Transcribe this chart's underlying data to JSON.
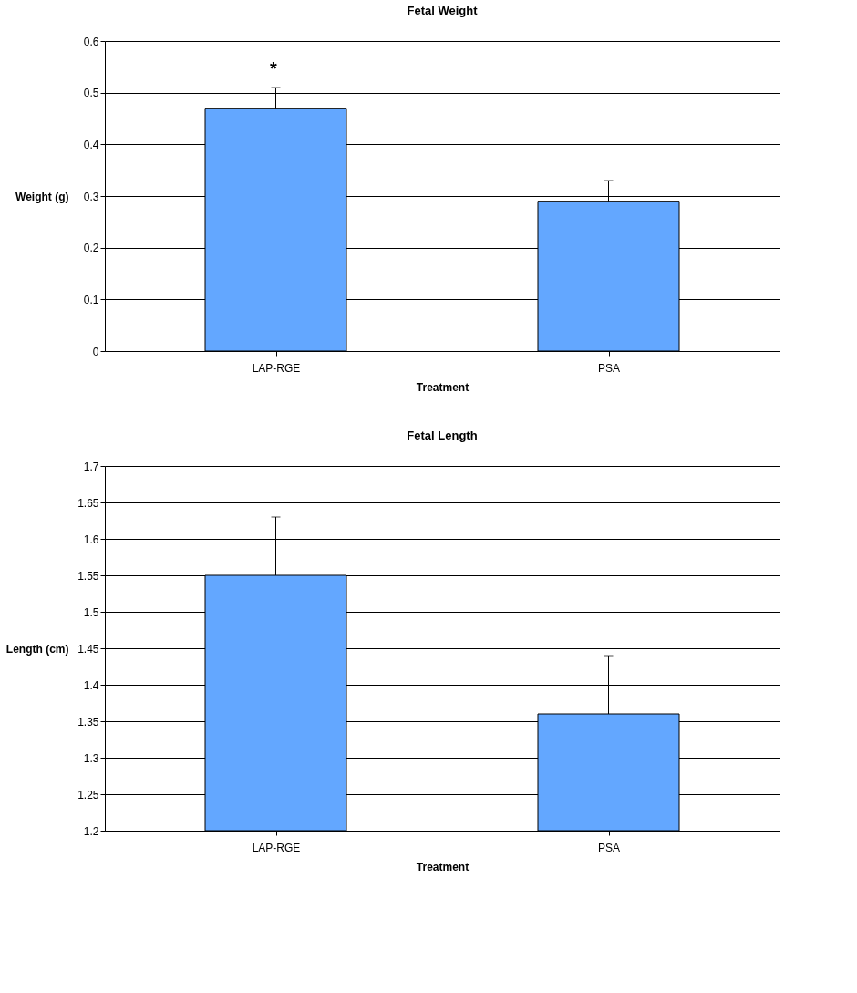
{
  "chart_data": [
    {
      "type": "bar",
      "title": "Fetal Weight",
      "xlabel": "Treatment",
      "ylabel": "Weight (g)",
      "categories": [
        "LAP-RGE",
        "PSA"
      ],
      "values": [
        0.47,
        0.29
      ],
      "color": "#63a7ff",
      "errors": [
        [
          0.47,
          0.51
        ],
        [
          0.29,
          0.33
        ]
      ],
      "ylim": [
        0,
        0.6
      ],
      "yticks": [
        0,
        0.1,
        0.2,
        0.3,
        0.4,
        0.5,
        0.6
      ],
      "grid": "y",
      "legend": false,
      "annotations": [
        "*"
      ]
    },
    {
      "type": "bar",
      "title": "Fetal Length",
      "xlabel": "Treatment",
      "ylabel": "Length (cm)",
      "categories": [
        "LAP-RGE",
        "PSA"
      ],
      "values": [
        1.55,
        1.36
      ],
      "color": "#63a7ff",
      "errors": [
        [
          1.55,
          1.63
        ],
        [
          1.36,
          1.44
        ]
      ],
      "ylim": [
        1.2,
        1.7
      ],
      "yticks": [
        1.2,
        1.25,
        1.3,
        1.35,
        1.4,
        1.45,
        1.5,
        1.55,
        1.6,
        1.65,
        1.7
      ],
      "grid": "y",
      "legend": false
    }
  ]
}
